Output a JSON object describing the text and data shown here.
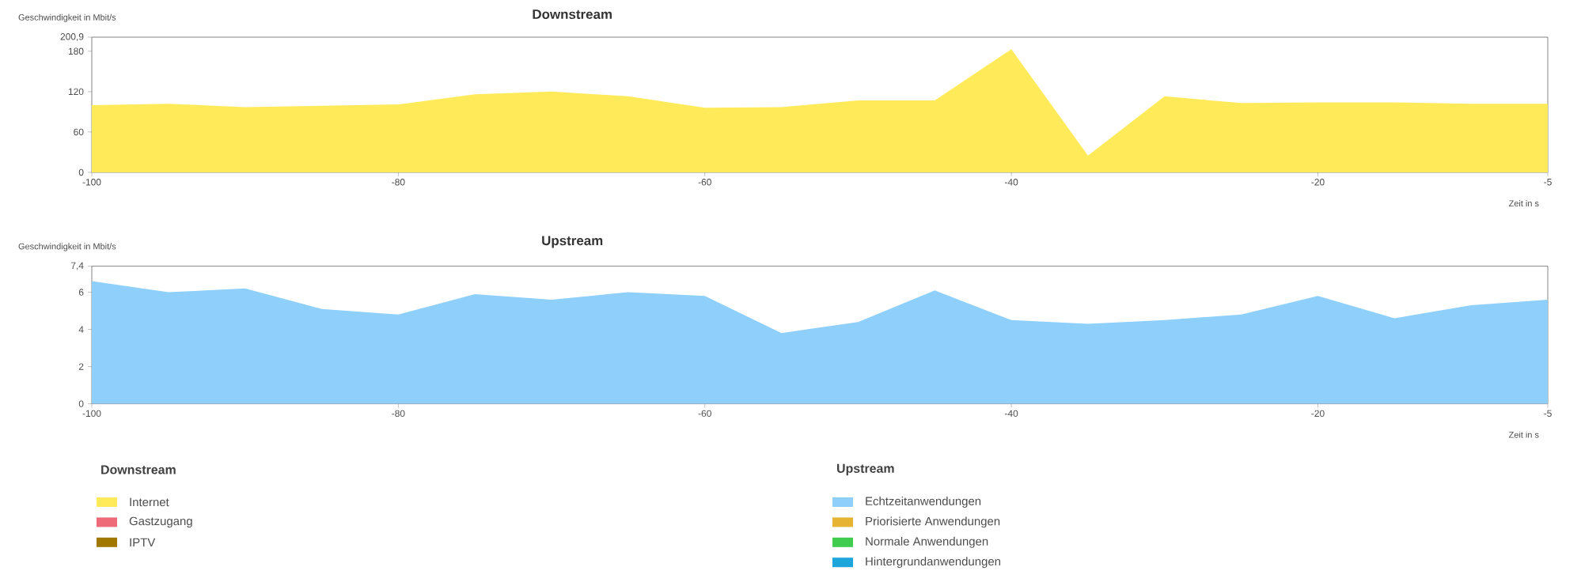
{
  "chart_data": [
    {
      "type": "area",
      "title": "Downstream",
      "ylabel": "Geschwindigkeit in Mbit/s",
      "xlabel": "Zeit in s",
      "legend_title": "Downstream",
      "legend": "bottom left",
      "x": [
        -100,
        -95,
        -90,
        -85,
        -80,
        -75,
        -70,
        -65,
        -60,
        -55,
        -50,
        -45,
        -40,
        -35,
        -30,
        -25,
        -20,
        -15,
        -10,
        -5
      ],
      "xlim": [
        -100,
        -5
      ],
      "xticks": [
        -100,
        -80,
        -60,
        -40,
        -20,
        -5
      ],
      "ylim": [
        0,
        200.9
      ],
      "yticks": [
        0,
        60,
        120,
        180,
        {
          "value": 200.9,
          "label": "200,9"
        }
      ],
      "series": [
        {
          "name": "Internet",
          "color": "#ffeb5a",
          "values": [
            100,
            102,
            97,
            99,
            101,
            116,
            120,
            113,
            96,
            97,
            107,
            107,
            183,
            25,
            113,
            103,
            104,
            104,
            102,
            102
          ]
        },
        {
          "name": "Gastzugang",
          "color": "#ee6a78",
          "values": [
            null,
            null,
            null,
            null,
            null,
            null,
            null,
            null,
            null,
            null,
            null,
            null,
            null,
            null,
            null,
            null,
            null,
            null,
            null,
            null
          ]
        },
        {
          "name": "IPTV",
          "color": "#a07800",
          "values": [
            null,
            null,
            null,
            null,
            null,
            null,
            null,
            null,
            null,
            null,
            null,
            null,
            null,
            null,
            null,
            null,
            null,
            null,
            null,
            null
          ]
        }
      ]
    },
    {
      "type": "area",
      "title": "Upstream",
      "ylabel": "Geschwindigkeit in Mbit/s",
      "xlabel": "Zeit in s",
      "legend_title": "Upstream",
      "legend": "bottom",
      "x": [
        -100,
        -95,
        -90,
        -85,
        -80,
        -75,
        -70,
        -65,
        -60,
        -55,
        -50,
        -45,
        -40,
        -35,
        -30,
        -25,
        -20,
        -15,
        -10,
        -5
      ],
      "xlim": [
        -100,
        -5
      ],
      "xticks": [
        -100,
        -80,
        -60,
        -40,
        -20,
        -5
      ],
      "ylim": [
        0,
        7.4
      ],
      "yticks": [
        0,
        2,
        4,
        6,
        {
          "value": 7.4,
          "label": "7,4"
        }
      ],
      "series": [
        {
          "name": "Echtzeitanwendungen",
          "color": "#8ed0fb",
          "values": [
            6.6,
            6.0,
            6.2,
            5.1,
            4.8,
            5.9,
            5.6,
            6.0,
            5.8,
            3.8,
            4.4,
            6.1,
            4.5,
            4.3,
            4.5,
            4.8,
            5.8,
            4.6,
            5.3,
            5.6
          ]
        },
        {
          "name": "Priorisierte Anwendungen",
          "color": "#e6b432",
          "values": [
            null,
            null,
            null,
            null,
            null,
            null,
            null,
            null,
            null,
            null,
            null,
            null,
            null,
            null,
            null,
            null,
            null,
            null,
            null,
            null
          ]
        },
        {
          "name": "Normale Anwendungen",
          "color": "#3fcc4f",
          "values": [
            null,
            null,
            null,
            null,
            null,
            null,
            null,
            null,
            null,
            null,
            null,
            null,
            null,
            null,
            null,
            null,
            null,
            null,
            null,
            null
          ]
        },
        {
          "name": "Hintergrundanwendungen",
          "color": "#1ca6dc",
          "values": [
            null,
            null,
            null,
            null,
            null,
            null,
            null,
            null,
            null,
            null,
            null,
            null,
            null,
            null,
            null,
            null,
            null,
            null,
            null,
            null
          ]
        }
      ]
    }
  ]
}
